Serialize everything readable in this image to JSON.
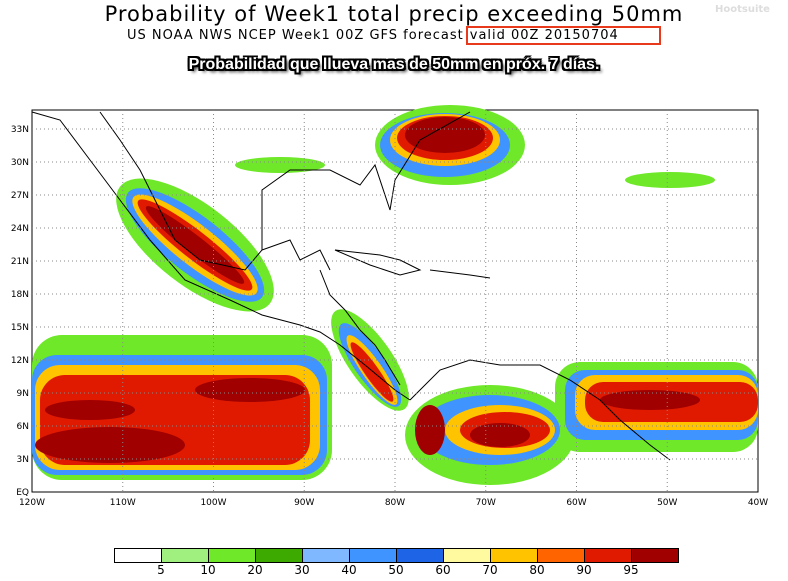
{
  "title": "Probability of Week1 total precip exceeding 50mm",
  "subtitle": "US NOAA NWS NCEP Week1 00Z GFS forecast",
  "valid_label": "valid 00Z 20150704",
  "caption": "Probabilidad que llueva mas de 50mm en próx. 7 días.",
  "watermark": "Hootsuite",
  "axes": {
    "lat_labels": [
      "EQ",
      "3N",
      "6N",
      "9N",
      "12N",
      "15N",
      "18N",
      "21N",
      "24N",
      "27N",
      "30N",
      "33N"
    ],
    "lon_labels": [
      "120W",
      "110W",
      "100W",
      "90W",
      "80W",
      "70W",
      "60W",
      "50W",
      "40W"
    ]
  },
  "legend": {
    "colors": [
      "#ffffff",
      "#a0f080",
      "#6ee828",
      "#3caa00",
      "#80b8ff",
      "#4094ff",
      "#1e64e6",
      "#fffaa0",
      "#ffc300",
      "#ff6400",
      "#e01a00",
      "#a00000"
    ],
    "ticks": [
      "5",
      "10",
      "20",
      "30",
      "40",
      "50",
      "60",
      "70",
      "80",
      "90",
      "95"
    ]
  }
}
